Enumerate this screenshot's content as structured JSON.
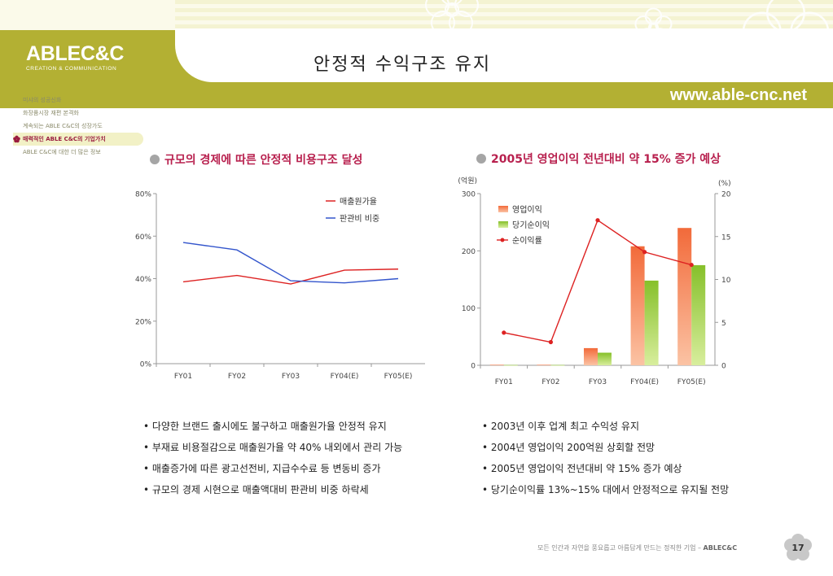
{
  "brand": {
    "logo": "ABLEC&C",
    "tagline": "CREATION & COMMUNICATION",
    "url": "www.able-cnc.net"
  },
  "page": {
    "title": "안정적 수익구조 유지",
    "number": "17"
  },
  "nav": {
    "items": [
      {
        "label": "미샤의 성공신화",
        "active": false
      },
      {
        "label": "화장품시장 재편 본격화",
        "active": false
      },
      {
        "label": "계속되는 ABLE C&C의 성장가도",
        "active": false
      },
      {
        "label": "매력적인 ABLE C&C의 기업가치",
        "active": true
      },
      {
        "label": "ABLE C&C에 대한 더 많은 정보",
        "active": false
      }
    ]
  },
  "left_section": {
    "title": "규모의 경제에 따른 안정적 비용구조 달성"
  },
  "right_section": {
    "title": "2005년 영업이익 전년대비 약 15% 증가 예상"
  },
  "chart_data": [
    {
      "type": "line",
      "categories": [
        "FY01",
        "FY02",
        "FY03",
        "FY04(E)",
        "FY05(E)"
      ],
      "series": [
        {
          "name": "매출원가율",
          "values": [
            38.5,
            41.5,
            37.5,
            44,
            44.5
          ],
          "color": "#dd2222"
        },
        {
          "name": "판관비 비중",
          "values": [
            57,
            53.5,
            39,
            38,
            40
          ],
          "color": "#3355cc"
        }
      ],
      "ylim": [
        0,
        80
      ],
      "yticks": [
        "0%",
        "20%",
        "40%",
        "60%",
        "80%"
      ],
      "grid": false,
      "legend": "top-right"
    },
    {
      "type": "bar",
      "categories": [
        "FY01",
        "FY02",
        "FY03",
        "FY04(E)",
        "FY05(E)"
      ],
      "series": [
        {
          "name": "영업이익",
          "values": [
            1,
            1,
            30,
            208,
            240
          ],
          "color": "#f5875a",
          "axis": "left"
        },
        {
          "name": "당기순이익",
          "values": [
            0.5,
            0.5,
            22,
            148,
            175
          ],
          "color": "#9acd3c",
          "axis": "left"
        },
        {
          "name": "순이익률",
          "values": [
            3.8,
            2.7,
            16.9,
            13.2,
            11.7
          ],
          "color": "#dd2222",
          "axis": "right",
          "type": "line"
        }
      ],
      "ylabel": "(억원)",
      "ylabel_right": "(%)",
      "ylim": [
        0,
        300
      ],
      "ylim_right": [
        0,
        20
      ],
      "yticks": [
        "0",
        "100",
        "200",
        "300"
      ],
      "yticks_right": [
        "0",
        "5",
        "10",
        "15",
        "20"
      ],
      "grid": false,
      "legend": "top-left"
    }
  ],
  "left_bullets": [
    "• 다양한 브랜드 출시에도 불구하고 매출원가율 안정적 유지",
    "• 부재료 비용절감으로 매출원가율 약 40% 내외에서 관리 가능",
    "• 매출증가에 따른 광고선전비, 지급수수료 등 변동비 증가",
    "• 규모의 경제 시현으로 매출액대비 판관비 비중 하락세"
  ],
  "right_bullets": [
    "• 2003년 이후 업계 최고 수익성 유지",
    "• 2004년 영업이익 200억원 상회할 전망",
    "• 2005년 영업이익 전년대비 약 15% 증가 예상",
    "• 당기순이익률 13%~15% 대에서 안정적으로 유지될 전망"
  ],
  "footer": {
    "text": "모든 인간과 자연을 풍요롭고 아름답게 만드는 정직한 기업 – ",
    "brand": "ABLEC&C"
  }
}
